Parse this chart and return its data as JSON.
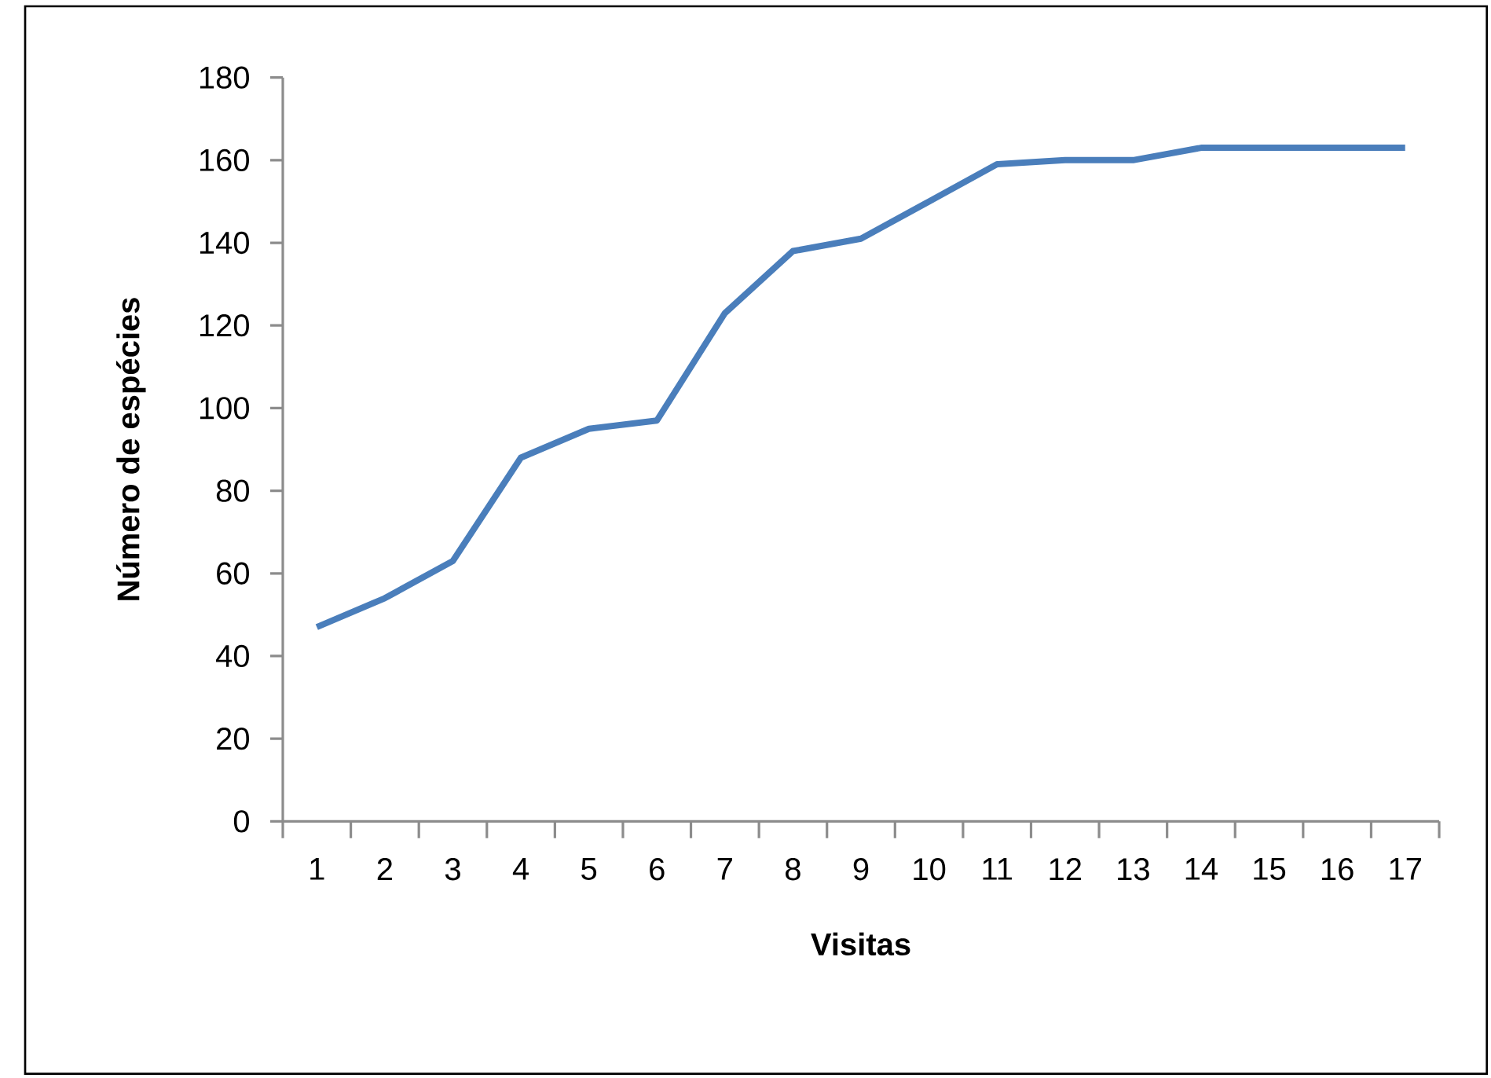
{
  "chart_data": {
    "type": "line",
    "xlabel": "Visitas",
    "ylabel": "Número de espécies",
    "categories": [
      "1",
      "2",
      "3",
      "4",
      "5",
      "6",
      "7",
      "8",
      "9",
      "10",
      "11",
      "12",
      "13",
      "14",
      "15",
      "16",
      "17"
    ],
    "series": [
      {
        "color": "#4a7ebb",
        "values": [
          47,
          54,
          63,
          88,
          95,
          97,
          123,
          138,
          141,
          150,
          159,
          160,
          160,
          163,
          163,
          163,
          163
        ]
      }
    ],
    "ylim": [
      0,
      180
    ],
    "yticks": [
      0,
      20,
      40,
      60,
      80,
      100,
      120,
      140,
      160,
      180
    ],
    "marker": "none",
    "line_style": "solid"
  }
}
